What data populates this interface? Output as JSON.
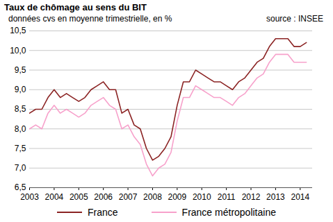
{
  "chart_data": {
    "type": "line",
    "title": "Taux de chômage au sens du BIT",
    "subtitle": "données cvs en moyenne trimestrielle, en %",
    "source": "source : INSEE",
    "x": [
      2003,
      2003.25,
      2003.5,
      2003.75,
      2004,
      2004.25,
      2004.5,
      2004.75,
      2005,
      2005.25,
      2005.5,
      2005.75,
      2006,
      2006.25,
      2006.5,
      2006.75,
      2007,
      2007.25,
      2007.5,
      2007.75,
      2008,
      2008.25,
      2008.5,
      2008.75,
      2009,
      2009.25,
      2009.5,
      2009.75,
      2010,
      2010.25,
      2010.5,
      2010.75,
      2011,
      2011.25,
      2011.5,
      2011.75,
      2012,
      2012.25,
      2012.5,
      2012.75,
      2013,
      2013.25,
      2013.5,
      2013.75,
      2014,
      2014.25
    ],
    "series": [
      {
        "name": "France",
        "color": "#8b2323",
        "values": [
          8.4,
          8.5,
          8.5,
          8.8,
          9.0,
          8.8,
          8.9,
          8.8,
          8.7,
          8.8,
          9.0,
          9.1,
          9.2,
          9.0,
          9.0,
          8.4,
          8.5,
          8.1,
          8.0,
          7.5,
          7.2,
          7.3,
          7.5,
          7.8,
          8.6,
          9.2,
          9.2,
          9.5,
          9.4,
          9.3,
          9.2,
          9.2,
          9.1,
          9.0,
          9.2,
          9.3,
          9.5,
          9.7,
          9.8,
          10.1,
          10.3,
          10.3,
          10.3,
          10.1,
          10.1,
          10.2
        ]
      },
      {
        "name": "France métropolitaine",
        "color": "#f7a1cb",
        "values": [
          8.0,
          8.1,
          8.0,
          8.4,
          8.6,
          8.4,
          8.5,
          8.4,
          8.3,
          8.4,
          8.6,
          8.7,
          8.8,
          8.6,
          8.5,
          8.0,
          8.1,
          7.8,
          7.6,
          7.1,
          6.8,
          7.0,
          7.1,
          7.4,
          8.2,
          8.8,
          8.8,
          9.1,
          9.0,
          8.9,
          8.8,
          8.8,
          8.7,
          8.6,
          8.8,
          8.9,
          9.1,
          9.3,
          9.4,
          9.7,
          9.9,
          9.9,
          9.9,
          9.7,
          9.7,
          9.7
        ]
      }
    ],
    "xlim": [
      2003,
      2014.5
    ],
    "xticks": [
      2003,
      2004,
      2005,
      2006,
      2007,
      2008,
      2009,
      2010,
      2011,
      2012,
      2013,
      2014
    ],
    "ylim": [
      6.5,
      10.5
    ],
    "yticks": [
      {
        "value": 6.5,
        "label": "6,5"
      },
      {
        "value": 7,
        "label": "7,0"
      },
      {
        "value": 7.5,
        "label": "7,5"
      },
      {
        "value": 8,
        "label": "8,0"
      },
      {
        "value": 8.5,
        "label": "8,5"
      },
      {
        "value": 9,
        "label": "9,0"
      },
      {
        "value": 9.5,
        "label": "9,5"
      },
      {
        "value": 10,
        "label": "10,0"
      },
      {
        "value": 10.5,
        "label": "10,5"
      }
    ],
    "grid": true,
    "legend": "bottom"
  }
}
